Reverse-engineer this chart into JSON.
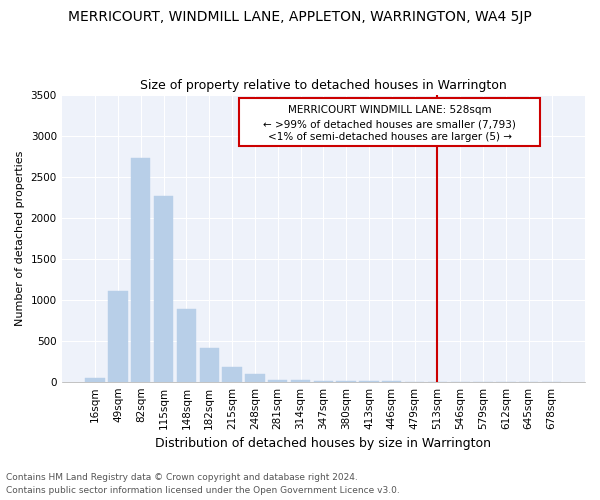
{
  "title": "MERRICOURT, WINDMILL LANE, APPLETON, WARRINGTON, WA4 5JP",
  "subtitle": "Size of property relative to detached houses in Warrington",
  "xlabel": "Distribution of detached houses by size in Warrington",
  "ylabel": "Number of detached properties",
  "footnote1": "Contains HM Land Registry data © Crown copyright and database right 2024.",
  "footnote2": "Contains public sector information licensed under the Open Government Licence v3.0.",
  "bar_labels": [
    "16sqm",
    "49sqm",
    "82sqm",
    "115sqm",
    "148sqm",
    "182sqm",
    "215sqm",
    "248sqm",
    "281sqm",
    "314sqm",
    "347sqm",
    "380sqm",
    "413sqm",
    "446sqm",
    "479sqm",
    "513sqm",
    "546sqm",
    "579sqm",
    "612sqm",
    "645sqm",
    "678sqm"
  ],
  "bar_values": [
    40,
    1110,
    2730,
    2260,
    880,
    415,
    185,
    95,
    25,
    15,
    10,
    5,
    5,
    5,
    0,
    0,
    0,
    0,
    0,
    0,
    0
  ],
  "bar_color": "#b8cfe8",
  "ylim": [
    0,
    3500
  ],
  "yticks": [
    0,
    500,
    1000,
    1500,
    2000,
    2500,
    3000,
    3500
  ],
  "property_line_index": 15,
  "annotation_line1": "MERRICOURT WINDMILL LANE: 528sqm",
  "annotation_line2": "← >99% of detached houses are smaller (7,793)",
  "annotation_line3": "<1% of semi-detached houses are larger (5) →",
  "annotation_box_color": "#cc0000",
  "background_color": "#eef2fa",
  "grid_color": "#ffffff",
  "title_fontsize": 10,
  "subtitle_fontsize": 9,
  "ylabel_fontsize": 8,
  "xlabel_fontsize": 9,
  "tick_fontsize": 7.5,
  "annotation_fontsize": 7.5,
  "footnote_fontsize": 6.5
}
